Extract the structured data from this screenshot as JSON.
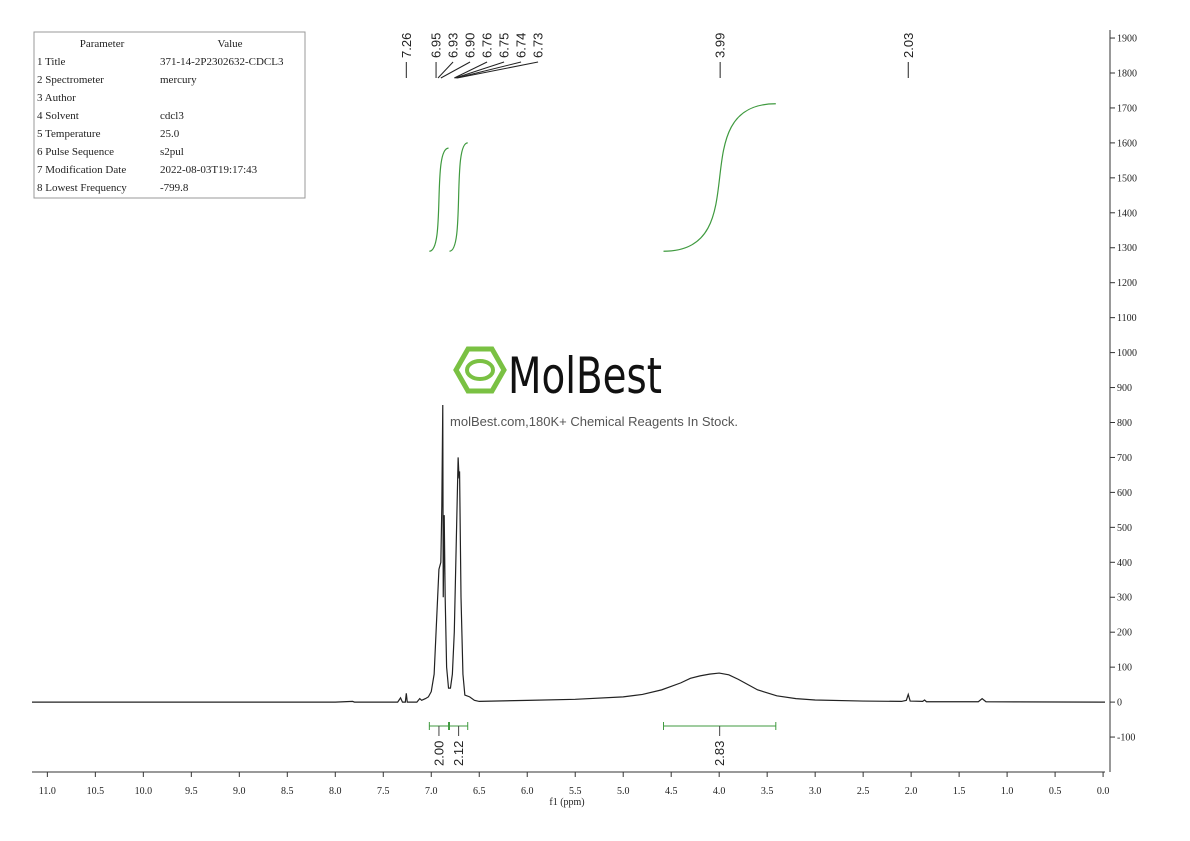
{
  "parameters": {
    "header": [
      "Parameter",
      "Value"
    ],
    "rows": [
      [
        "1 Title",
        "371-14-2P2302632-CDCL3"
      ],
      [
        "2 Spectrometer",
        "mercury"
      ],
      [
        "3 Author"
      ],
      [
        "4 Solvent",
        "cdcl3"
      ],
      [
        "5 Temperature",
        "25.0"
      ],
      [
        "6 Pulse Sequence",
        "s2pul"
      ],
      [
        "7 Modification Date",
        "2022-08-03T19:17:43"
      ],
      [
        "8 Lowest Frequency",
        "-799.8"
      ]
    ]
  },
  "watermark": {
    "brand": "MolBest",
    "tagline": "molBest.com,180K+ Chemical Reagents In Stock."
  },
  "chart_data": {
    "type": "line",
    "x_label": "f1 (ppm)",
    "color": "#222222",
    "integral_color": "#3f9a3f",
    "xlim": [
      11.16,
      -0.02
    ],
    "ylim": [
      -200,
      1923
    ],
    "xticks": [
      {
        "value": 11,
        "label": "11.0"
      },
      10.5,
      {
        "value": 10,
        "label": "10.0"
      },
      9.5,
      {
        "value": 9,
        "label": "9.0"
      },
      8.5,
      {
        "value": 8,
        "label": "8.0"
      },
      7.5,
      {
        "value": 7,
        "label": "7.0"
      },
      6.5,
      {
        "value": 6,
        "label": "6.0"
      },
      5.5,
      {
        "value": 5,
        "label": "5.0"
      },
      4.5,
      {
        "value": 4,
        "label": "4.0"
      },
      3.5,
      {
        "value": 3,
        "label": "3.0"
      },
      2.5,
      {
        "value": 2,
        "label": "2.0"
      },
      1.5,
      {
        "value": 1,
        "label": "1.0"
      },
      0.5,
      {
        "value": 0,
        "label": "0.0"
      }
    ],
    "yticks": [
      -100,
      0,
      100,
      200,
      300,
      400,
      500,
      600,
      700,
      800,
      900,
      1000,
      1100,
      1200,
      1300,
      1400,
      1500,
      1600,
      1700,
      1800,
      1900
    ],
    "x": [
      11.16,
      8.0,
      7.82,
      7.8,
      7.35,
      7.32,
      7.3,
      7.27,
      7.26,
      7.25,
      7.15,
      7.12,
      7.1,
      7.06,
      7.03,
      7.0,
      6.97,
      6.95,
      6.92,
      6.9,
      6.89,
      6.88,
      6.875,
      6.865,
      6.855,
      6.84,
      6.82,
      6.8,
      6.78,
      6.76,
      6.74,
      6.72,
      6.71,
      6.705,
      6.69,
      6.67,
      6.65,
      6.6,
      6.55,
      6.5,
      6.0,
      5.5,
      5.0,
      4.8,
      4.6,
      4.4,
      4.3,
      4.2,
      4.1,
      4.0,
      3.9,
      3.8,
      3.7,
      3.6,
      3.4,
      3.2,
      3.0,
      2.5,
      2.1,
      2.05,
      2.03,
      2.01,
      1.88,
      1.86,
      1.84,
      1.3,
      1.26,
      1.22,
      0,
      -0.02
    ],
    "values": [
      0,
      0,
      2,
      0,
      0,
      12,
      0,
      0,
      25,
      0,
      0,
      10,
      5,
      10,
      15,
      30,
      80,
      200,
      380,
      400,
      560,
      850,
      300,
      535,
      300,
      100,
      40,
      40,
      80,
      200,
      450,
      700,
      640,
      660,
      300,
      80,
      20,
      15,
      5,
      2,
      5,
      8,
      15,
      22,
      35,
      55,
      68,
      75,
      80,
      83,
      78,
      65,
      50,
      35,
      18,
      10,
      6,
      3,
      2,
      5,
      22,
      3,
      2,
      6,
      1,
      1,
      10,
      1,
      0,
      0
    ],
    "peak_labels": [
      7.26,
      6.95,
      6.93,
      {
        "value": 6.9,
        "label": "6.90"
      },
      6.76,
      6.75,
      6.74,
      6.73,
      3.99,
      2.03
    ],
    "integrals": [
      {
        "range": [
          7.02,
          6.82
        ],
        "value": 2,
        "label": "2.00",
        "curve": [
          1290,
          1585
        ]
      },
      {
        "range": [
          6.81,
          6.62
        ],
        "value": 2.12,
        "curve": [
          1290,
          1600
        ]
      },
      {
        "range": [
          4.58,
          3.41
        ],
        "value": 2.83,
        "curve": [
          1290,
          1712
        ]
      }
    ]
  }
}
